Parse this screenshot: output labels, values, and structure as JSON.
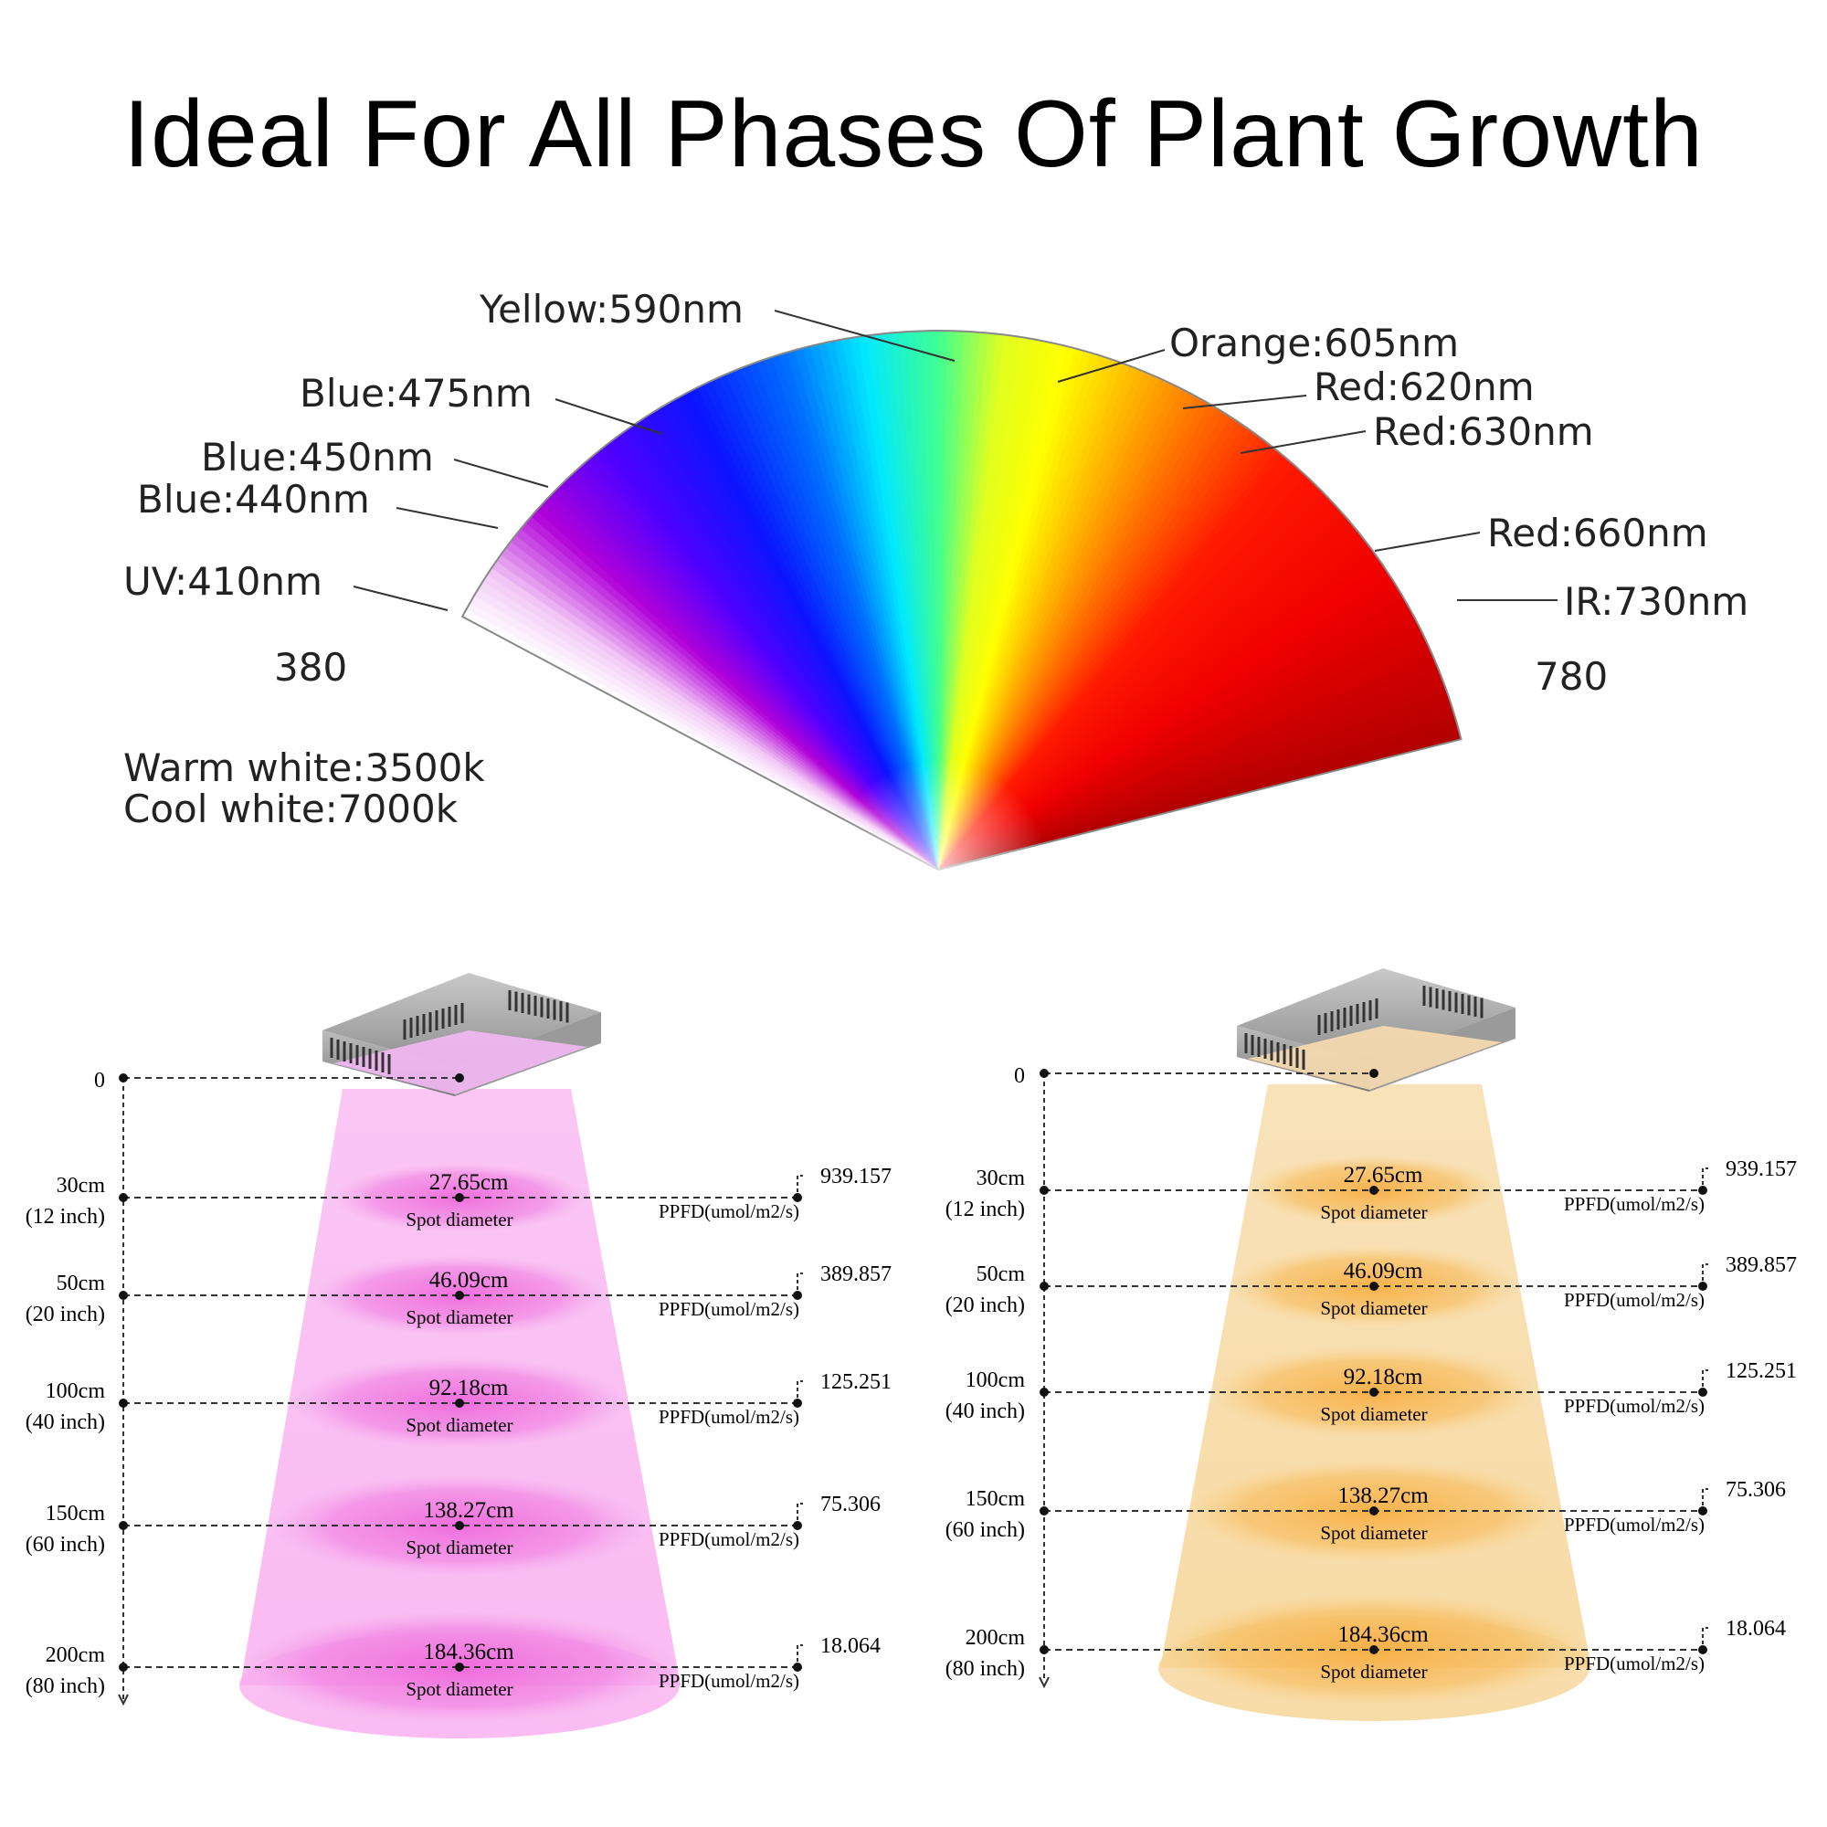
{
  "title": "Ideal For All Phases Of Plant Growth",
  "spectrum": {
    "start_nm": "380",
    "end_nm": "780",
    "labels": [
      {
        "text": "Yellow:590nm",
        "side": "left"
      },
      {
        "text": "Orange:605nm",
        "side": "right"
      },
      {
        "text": "Blue:475nm",
        "side": "left"
      },
      {
        "text": "Red:620nm",
        "side": "right"
      },
      {
        "text": "Red:630nm",
        "side": "right"
      },
      {
        "text": "Blue:450nm",
        "side": "left"
      },
      {
        "text": "Blue:440nm",
        "side": "left"
      },
      {
        "text": "Red:660nm",
        "side": "right"
      },
      {
        "text": "UV:410nm",
        "side": "left"
      },
      {
        "text": "IR:730nm",
        "side": "right"
      }
    ],
    "warm_white": "Warm white:3500k",
    "cool_white": "Cool white:7000k"
  },
  "diagrams": [
    {
      "color": "pink",
      "zero": "0",
      "levels": [
        {
          "cm": "30cm",
          "inch": "(12 inch)",
          "diameter": "27.65cm",
          "spot": "Spot diameter",
          "ppfd": "939.157",
          "unit": "PPFD(umol/m2/s)"
        },
        {
          "cm": "50cm",
          "inch": "(20 inch)",
          "diameter": "46.09cm",
          "spot": "Spot diameter",
          "ppfd": "389.857",
          "unit": "PPFD(umol/m2/s)"
        },
        {
          "cm": "100cm",
          "inch": "(40 inch)",
          "diameter": "92.18cm",
          "spot": "Spot diameter",
          "ppfd": "125.251",
          "unit": "PPFD(umol/m2/s)"
        },
        {
          "cm": "150cm",
          "inch": "(60 inch)",
          "diameter": "138.27cm",
          "spot": "Spot diameter",
          "ppfd": "75.306",
          "unit": "PPFD(umol/m2/s)"
        },
        {
          "cm": "200cm",
          "inch": "(80 inch)",
          "diameter": "184.36cm",
          "spot": "Spot diameter",
          "ppfd": "18.064",
          "unit": "PPFD(umol/m2/s)"
        }
      ]
    },
    {
      "color": "amber",
      "zero": "0",
      "levels": [
        {
          "cm": "30cm",
          "inch": "(12 inch)",
          "diameter": "27.65cm",
          "spot": "Spot diameter",
          "ppfd": "939.157",
          "unit": "PPFD(umol/m2/s)"
        },
        {
          "cm": "50cm",
          "inch": "(20 inch)",
          "diameter": "46.09cm",
          "spot": "Spot diameter",
          "ppfd": "389.857",
          "unit": "PPFD(umol/m2/s)"
        },
        {
          "cm": "100cm",
          "inch": "(40 inch)",
          "diameter": "92.18cm",
          "spot": "Spot diameter",
          "ppfd": "125.251",
          "unit": "PPFD(umol/m2/s)"
        },
        {
          "cm": "150cm",
          "inch": "(60 inch)",
          "diameter": "138.27cm",
          "spot": "Spot diameter",
          "ppfd": "75.306",
          "unit": "PPFD(umol/m2/s)"
        },
        {
          "cm": "200cm",
          "inch": "(80 inch)",
          "diameter": "184.36cm",
          "spot": "Spot diameter",
          "ppfd": "18.064",
          "unit": "PPFD(umol/m2/s)"
        }
      ]
    }
  ]
}
